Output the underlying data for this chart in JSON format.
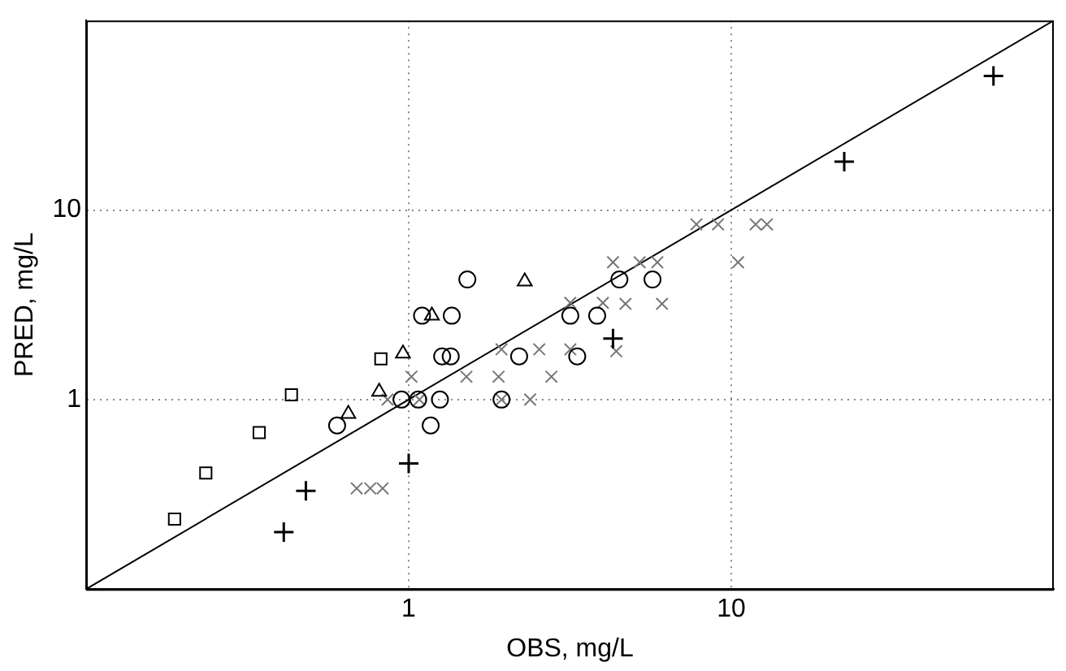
{
  "chart_data": {
    "type": "scatter",
    "xlabel": "OBS, mg/L",
    "ylabel": "PRED, mg/L",
    "log": "xy",
    "xlim": [
      0.1,
      100
    ],
    "ylim": [
      0.1,
      100
    ],
    "xticks": [
      1,
      10
    ],
    "yticks": [
      1,
      10
    ],
    "grid": true,
    "legend": false,
    "series": [
      {
        "color": "#000000",
        "marker": "square",
        "x": [
          0.188,
          0.235,
          0.344,
          0.433,
          0.82
        ],
        "values": [
          0.234,
          0.41,
          0.67,
          1.06,
          1.64
        ]
      },
      {
        "color": "#000000",
        "marker": "plus",
        "x": [
          0.41,
          0.48,
          1.0,
          4.3,
          22.4,
          65
        ],
        "values": [
          0.2,
          0.33,
          0.46,
          2.1,
          18,
          51
        ]
      },
      {
        "color": "#000000",
        "marker": "circle",
        "x": [
          0.6,
          0.95,
          1.07,
          1.25,
          1.17,
          1.1,
          1.36,
          1.27,
          1.35,
          1.52,
          1.94,
          2.2,
          3.17,
          3.33,
          3.84,
          4.5,
          5.7
        ],
        "values": [
          0.73,
          1.0,
          1.0,
          1.0,
          0.73,
          2.77,
          2.77,
          1.69,
          1.69,
          4.3,
          1.0,
          1.69,
          2.77,
          1.69,
          2.77,
          4.3,
          4.3
        ]
      },
      {
        "color": "#000000",
        "marker": "triangle",
        "x": [
          0.65,
          0.81,
          0.96,
          1.18,
          2.29
        ],
        "values": [
          0.84,
          1.1,
          1.75,
          2.77,
          4.2
        ]
      },
      {
        "color": "#777777",
        "marker": "cross",
        "x": [
          0.69,
          0.76,
          0.83,
          0.86,
          1.02,
          1.08,
          1.51,
          1.9,
          1.94,
          1.94,
          2.38,
          2.54,
          2.77,
          3.17,
          3.17,
          4.0,
          4.4,
          4.3,
          4.7,
          5.2,
          5.9,
          6.1,
          7.8,
          9.1,
          10.5,
          11.9,
          12.9
        ],
        "values": [
          0.34,
          0.34,
          0.34,
          1.0,
          1.32,
          1.0,
          1.32,
          1.32,
          1.0,
          1.84,
          1.0,
          1.84,
          1.32,
          1.84,
          3.24,
          3.24,
          1.8,
          5.3,
          3.2,
          5.3,
          5.3,
          3.2,
          8.4,
          8.4,
          5.3,
          8.4,
          8.4
        ]
      },
      {
        "type": "line",
        "color": "#000000",
        "marker": "none",
        "line_style": "solid",
        "x": [
          0.1,
          100
        ],
        "values": [
          0.1,
          100
        ]
      }
    ]
  }
}
